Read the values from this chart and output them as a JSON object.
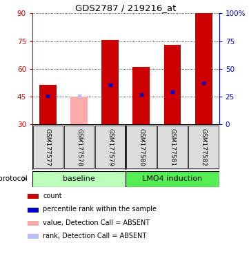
{
  "title": "GDS2787 / 219216_at",
  "samples": [
    "GSM177577",
    "GSM177578",
    "GSM177579",
    "GSM177580",
    "GSM177581",
    "GSM177582"
  ],
  "bar_values": [
    51.5,
    45.0,
    75.5,
    61.0,
    73.0,
    90.0
  ],
  "bar_colors": [
    "#cc0000",
    "#ffaaaa",
    "#cc0000",
    "#cc0000",
    "#cc0000",
    "#cc0000"
  ],
  "rank_values": [
    45.5,
    45.5,
    51.5,
    46.0,
    47.5,
    52.5
  ],
  "rank_colors": [
    "#0000cc",
    "#bbbbff",
    "#0000cc",
    "#0000cc",
    "#0000cc",
    "#0000cc"
  ],
  "ylim_left": [
    30,
    90
  ],
  "yticks_left": [
    30,
    45,
    60,
    75,
    90
  ],
  "yticks_right": [
    0,
    25,
    50,
    75,
    100
  ],
  "yticklabels_right": [
    "0",
    "25",
    "50",
    "75",
    "100%"
  ],
  "protocol_labels": [
    "baseline",
    "LMO4 induction"
  ],
  "protocol_colors": [
    "#bbffbb",
    "#55ee55"
  ],
  "bar_width": 0.55,
  "absent_indices": [
    1
  ],
  "legend_items": [
    {
      "color": "#cc0000",
      "label": "count"
    },
    {
      "color": "#0000cc",
      "label": "percentile rank within the sample"
    },
    {
      "color": "#ffaaaa",
      "label": "value, Detection Call = ABSENT"
    },
    {
      "color": "#bbbbff",
      "label": "rank, Detection Call = ABSENT"
    }
  ],
  "left_axis_color": "#cc0000",
  "right_axis_color": "#0000bb",
  "fig_width": 3.61,
  "fig_height": 3.84,
  "dpi": 100
}
